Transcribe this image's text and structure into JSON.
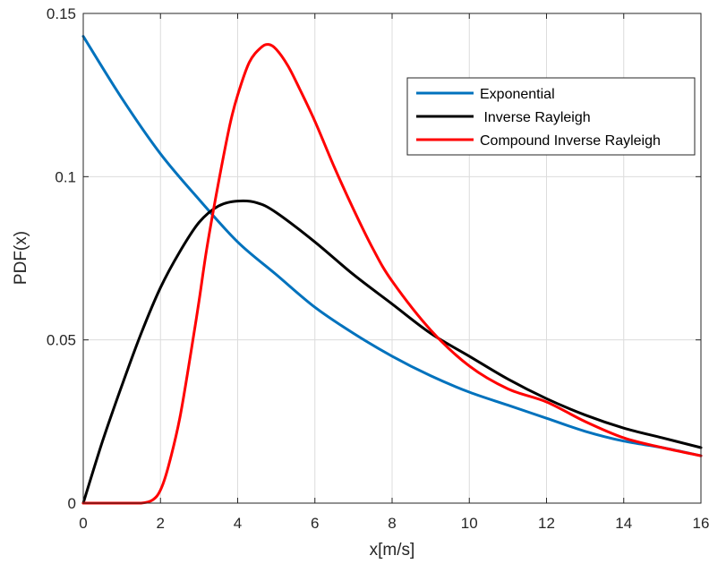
{
  "chart_data": {
    "type": "line",
    "title": "",
    "xlabel": "x[m/s]",
    "ylabel": "PDF(x)",
    "xlim": [
      0,
      16
    ],
    "ylim": [
      0,
      0.15
    ],
    "x_ticks": [
      0,
      2,
      4,
      6,
      8,
      10,
      12,
      14,
      16
    ],
    "y_ticks": [
      0,
      0.05,
      0.1,
      0.15
    ],
    "x_tick_labels": [
      "0",
      "2",
      "4",
      "6",
      "8",
      "10",
      "12",
      "14",
      "16"
    ],
    "y_tick_labels": [
      "0",
      "0.05",
      "0.1",
      "0.15"
    ],
    "grid": true,
    "legend_position": "top-right",
    "series": [
      {
        "name": "Exponential",
        "color": "#0072BD",
        "x": [
          0,
          1,
          2,
          3,
          4,
          5,
          6,
          7,
          8,
          9,
          10,
          11,
          12,
          13,
          14,
          15,
          16
        ],
        "values": [
          0.143,
          0.124,
          0.107,
          0.093,
          0.08,
          0.07,
          0.06,
          0.052,
          0.045,
          0.039,
          0.034,
          0.03,
          0.026,
          0.022,
          0.019,
          0.017,
          0.0145
        ]
      },
      {
        "name": " Inverse Rayleigh",
        "color": "#000000",
        "x": [
          0,
          0.5,
          1,
          1.5,
          2,
          2.5,
          3,
          3.5,
          4,
          4.5,
          5,
          6,
          7,
          8,
          9,
          10,
          11,
          12,
          13,
          14,
          15,
          16
        ],
        "values": [
          0,
          0.019,
          0.036,
          0.052,
          0.066,
          0.077,
          0.086,
          0.091,
          0.0925,
          0.092,
          0.089,
          0.08,
          0.07,
          0.061,
          0.052,
          0.045,
          0.038,
          0.032,
          0.027,
          0.023,
          0.02,
          0.017
        ]
      },
      {
        "name": "Compound Inverse Rayleigh",
        "color": "#FF0000",
        "x": [
          0,
          1,
          1.5,
          1.8,
          2,
          2.2,
          2.5,
          2.8,
          3,
          3.2,
          3.5,
          3.8,
          4,
          4.3,
          4.6,
          4.8,
          5,
          5.3,
          5.6,
          6,
          6.5,
          7,
          7.5,
          8,
          9,
          10,
          11,
          12,
          13,
          14,
          15,
          16
        ],
        "values": [
          0,
          0,
          0,
          0.001,
          0.004,
          0.011,
          0.026,
          0.047,
          0.062,
          0.078,
          0.098,
          0.116,
          0.125,
          0.135,
          0.1395,
          0.1405,
          0.139,
          0.134,
          0.127,
          0.117,
          0.103,
          0.09,
          0.078,
          0.068,
          0.053,
          0.042,
          0.035,
          0.031,
          0.025,
          0.02,
          0.017,
          0.0145
        ]
      }
    ]
  }
}
